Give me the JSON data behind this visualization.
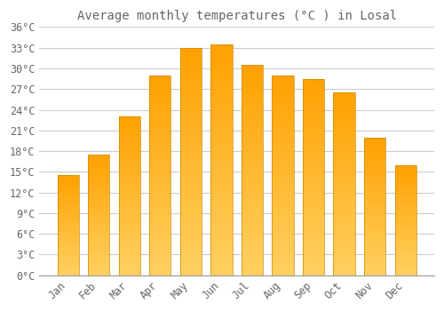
{
  "title": "Average monthly temperatures (°C ) in Losal",
  "months": [
    "Jan",
    "Feb",
    "Mar",
    "Apr",
    "May",
    "Jun",
    "Jul",
    "Aug",
    "Sep",
    "Oct",
    "Nov",
    "Dec"
  ],
  "values": [
    14.5,
    17.5,
    23.0,
    29.0,
    33.0,
    33.5,
    30.5,
    29.0,
    28.5,
    26.5,
    20.0,
    16.0
  ],
  "bar_color_top": "#FFA500",
  "bar_color_bottom": "#FFD060",
  "bar_edge_color": "#CC8800",
  "background_color": "#FFFFFF",
  "grid_color": "#CCCCCC",
  "text_color": "#666666",
  "ylim": [
    0,
    36
  ],
  "ytick_step": 3,
  "title_fontsize": 10,
  "tick_fontsize": 8.5
}
